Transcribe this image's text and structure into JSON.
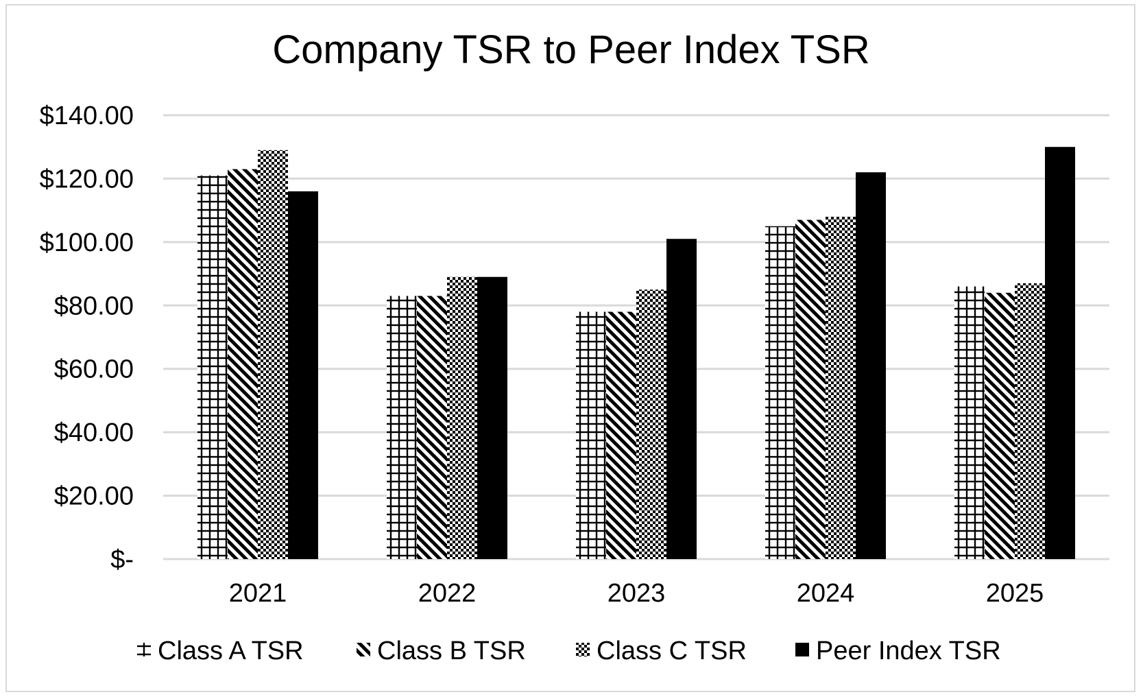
{
  "chart_data": {
    "type": "bar",
    "title": "Company TSR to Peer Index TSR",
    "xlabel": "",
    "ylabel": "",
    "categories": [
      "2021",
      "2022",
      "2023",
      "2024",
      "2025"
    ],
    "ylim": [
      0,
      140
    ],
    "yticks": [
      0,
      20,
      40,
      60,
      80,
      100,
      120,
      140
    ],
    "ytick_labels": [
      "$-",
      "$20.00",
      "$40.00",
      "$60.00",
      "$80.00",
      "$100.00",
      "$120.00",
      "$140.00"
    ],
    "grid": true,
    "legend_position": "bottom",
    "series": [
      {
        "name": "Class A TSR",
        "values": [
          121,
          83,
          78,
          105,
          86
        ],
        "pattern": "grid",
        "color": "#000000"
      },
      {
        "name": "Class B TSR",
        "values": [
          123,
          83,
          78,
          107,
          84
        ],
        "pattern": "diagonal",
        "color": "#000000"
      },
      {
        "name": "Class C TSR",
        "values": [
          129,
          89,
          85,
          108,
          87
        ],
        "pattern": "checker",
        "color": "#000000"
      },
      {
        "name": "Peer Index TSR",
        "values": [
          116,
          89,
          101,
          122,
          130
        ],
        "pattern": "solid",
        "color": "#000000"
      }
    ]
  }
}
